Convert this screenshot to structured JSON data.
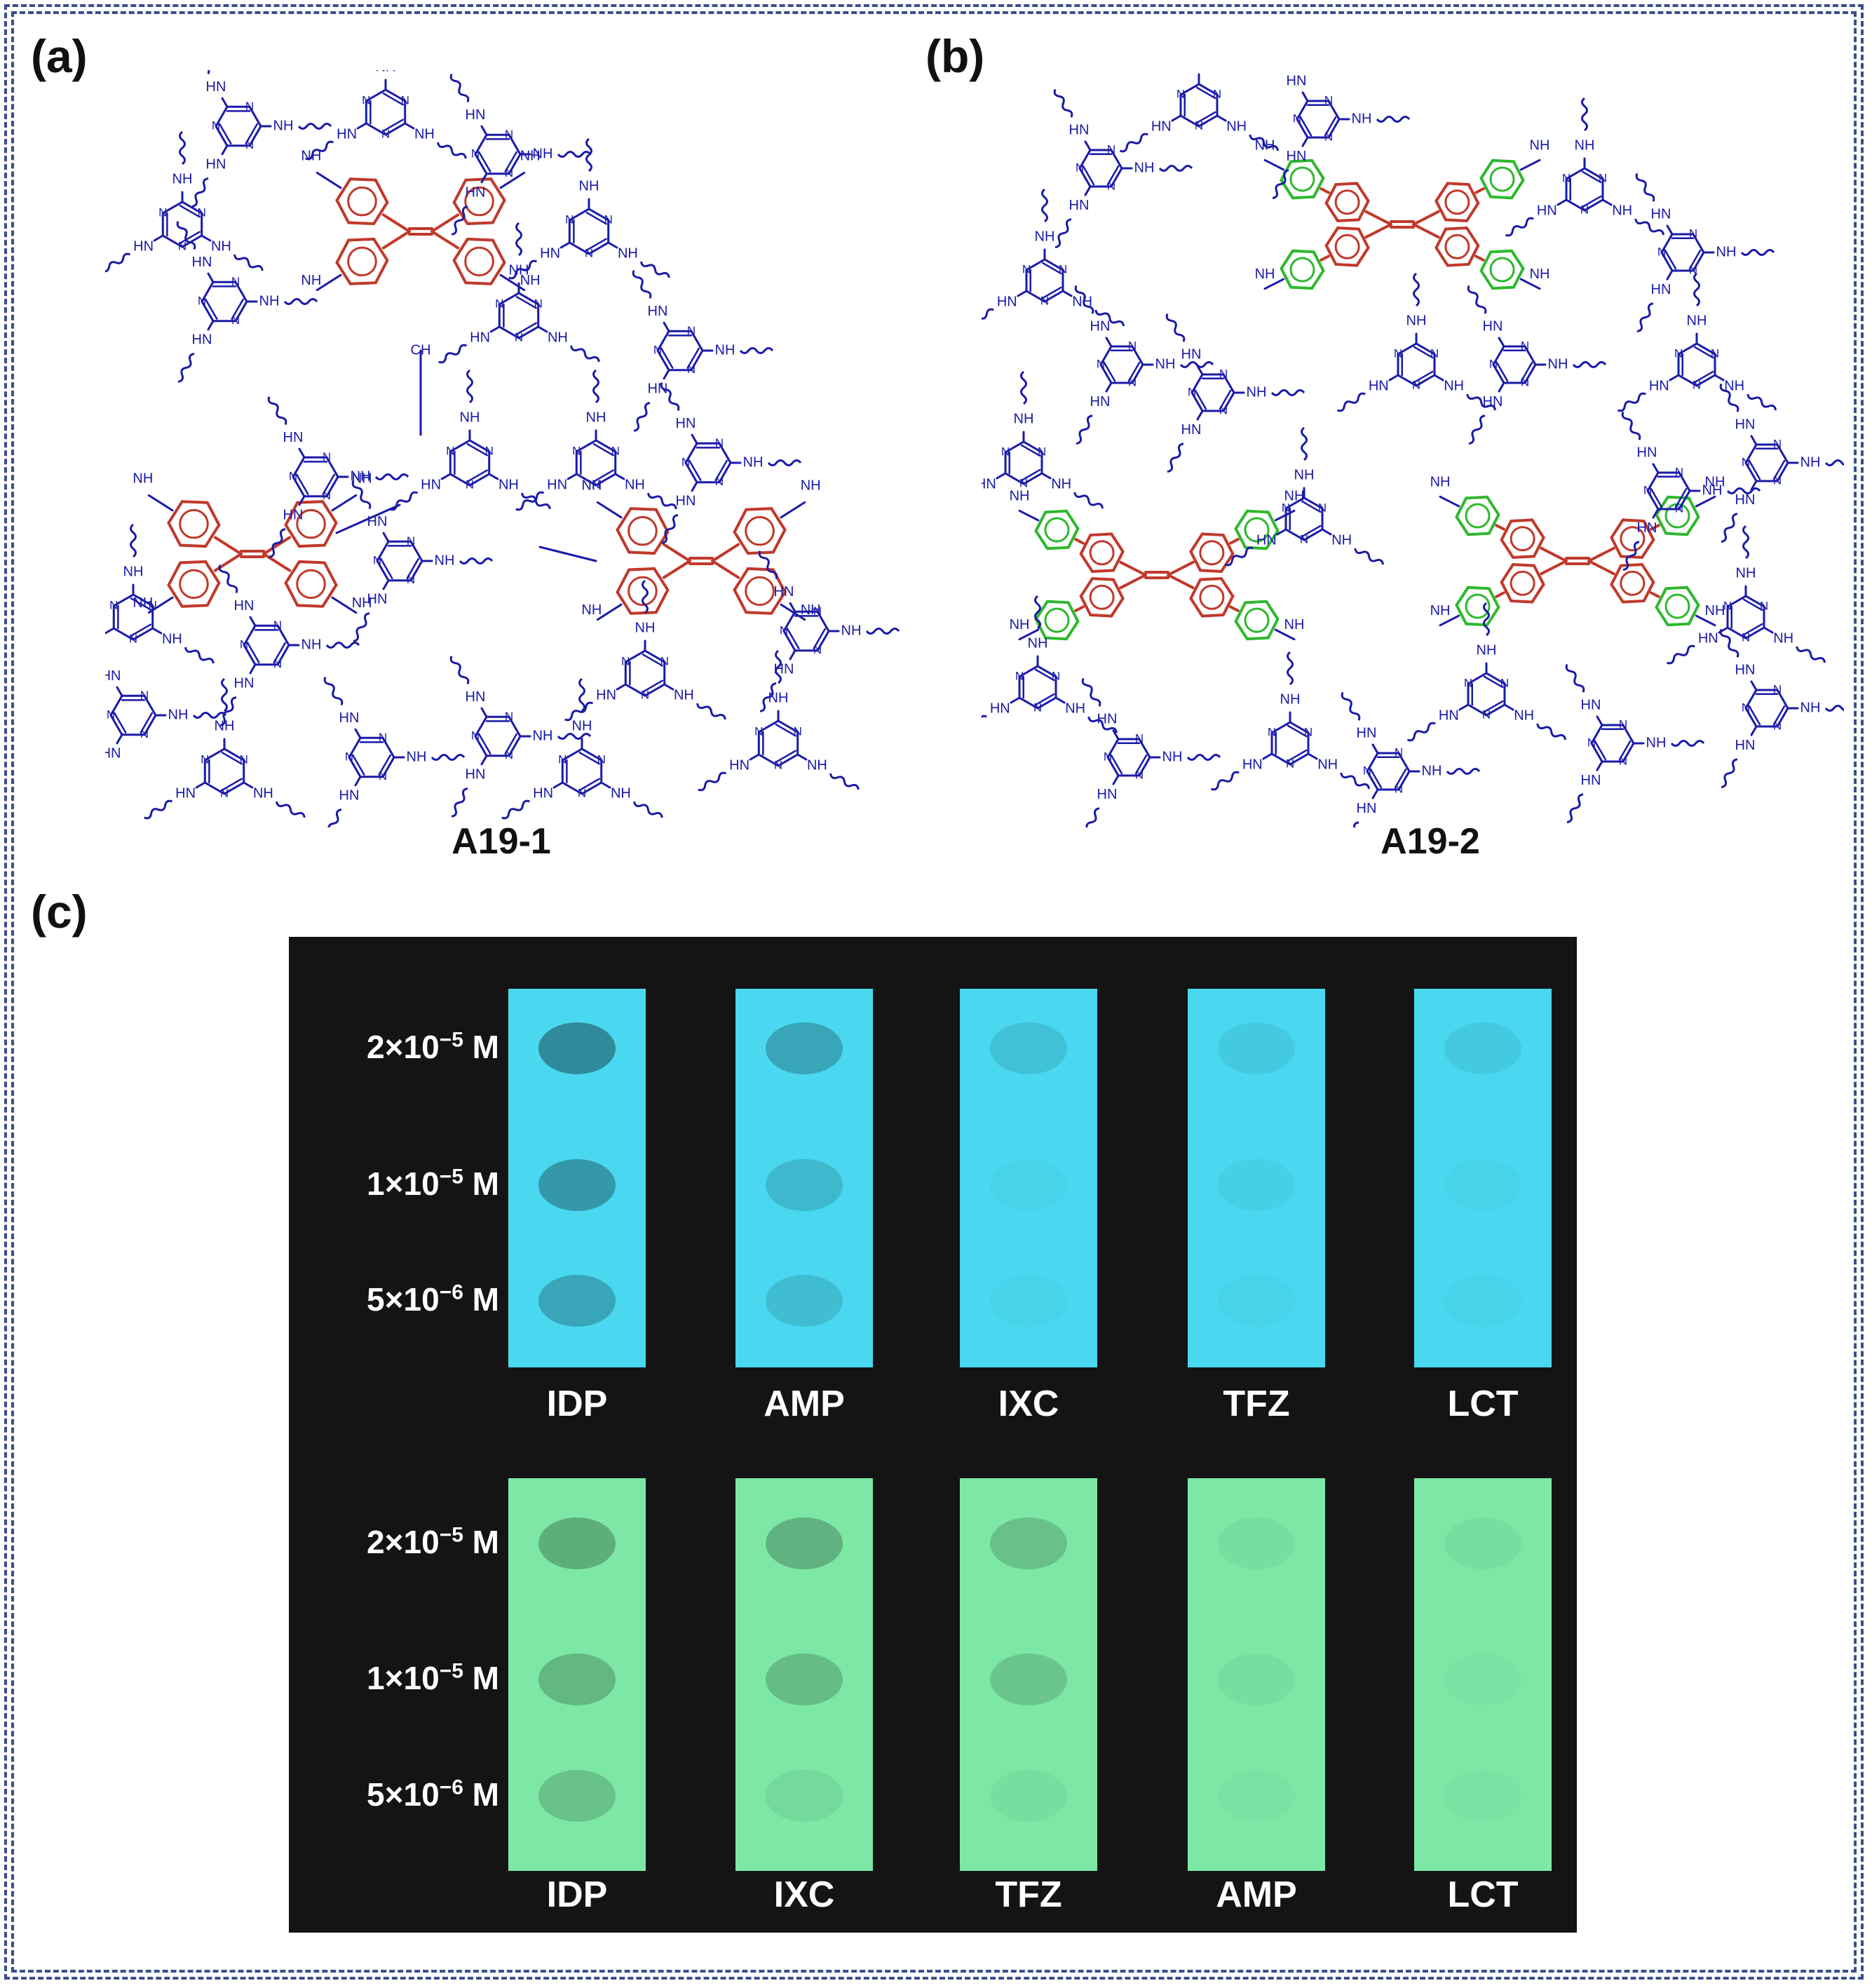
{
  "panels": {
    "a": "(a)",
    "b": "(b)",
    "c": "(c)"
  },
  "structures": {
    "a_name": "A19-1",
    "b_name": "A19-2",
    "atom_labels": {
      "nh": "NH",
      "hn": "HN",
      "n": "N",
      "ch": "CH",
      "h": "H"
    }
  },
  "colors": {
    "molecule_blue": "#1a1aa8",
    "tpe_red": "#c0392b",
    "linker_green": "#2eb82e",
    "strip_blue": "#49d8ef",
    "strip_green": "#7de8a6"
  },
  "photo": {
    "concentrations": [
      {
        "mantissa": "2×10",
        "exp": "−5",
        "unit": "M"
      },
      {
        "mantissa": "1×10",
        "exp": "−5",
        "unit": "M"
      },
      {
        "mantissa": "5×10",
        "exp": "−6",
        "unit": "M"
      }
    ],
    "top_row": {
      "labels": [
        "IDP",
        "AMP",
        "IXC",
        "TFZ",
        "LCT"
      ],
      "quench_intensity": [
        [
          0.85,
          0.7,
          0.55
        ],
        [
          0.55,
          0.35,
          0.3
        ],
        [
          0.25,
          0.05,
          0.05
        ],
        [
          0.15,
          0.1,
          0.05
        ],
        [
          0.15,
          0.05,
          0.05
        ]
      ]
    },
    "bottom_row": {
      "labels": [
        "IDP",
        "IXC",
        "TFZ",
        "AMP",
        "LCT"
      ],
      "quench_intensity": [
        [
          0.6,
          0.5,
          0.4
        ],
        [
          0.55,
          0.45,
          0.15
        ],
        [
          0.4,
          0.35,
          0.1
        ],
        [
          0.1,
          0.1,
          0.05
        ],
        [
          0.1,
          0.05,
          0.05
        ]
      ]
    }
  }
}
